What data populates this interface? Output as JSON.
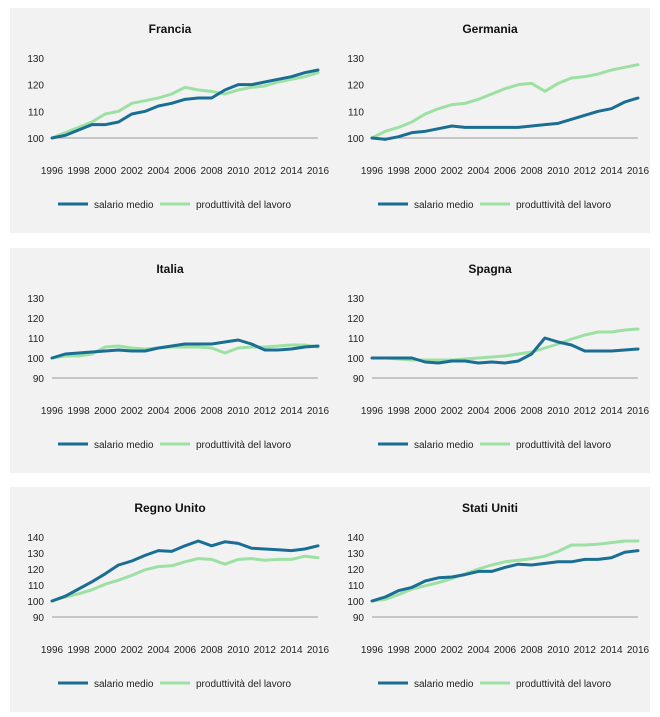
{
  "legend": {
    "salario": "salario medio",
    "produttivita": "produttività del lavoro"
  },
  "colors": {
    "salario": "#1b6e93",
    "produttivita": "#9de0a3",
    "axis": "#9a9a9a",
    "panel_bg": "#f2f2f2"
  },
  "chart_data": [
    {
      "type": "line",
      "title": "Francia",
      "x": [
        1996,
        1997,
        1998,
        1999,
        2000,
        2001,
        2002,
        2003,
        2004,
        2005,
        2006,
        2007,
        2008,
        2009,
        2010,
        2011,
        2012,
        2013,
        2014,
        2015,
        2016
      ],
      "xticks": [
        "1996",
        "1998",
        "2000",
        "2002",
        "2004",
        "2006",
        "2008",
        "2010",
        "2012",
        "2014",
        "2016"
      ],
      "yticks": [
        "100",
        "110",
        "120",
        "130"
      ],
      "ylim": [
        100,
        130
      ],
      "series": [
        {
          "name": "salario medio",
          "values": [
            100,
            101,
            103,
            105,
            105,
            106,
            109,
            110,
            112,
            113,
            114.5,
            115,
            115,
            118,
            120,
            120,
            121,
            122,
            123,
            124.5,
            125.5
          ]
        },
        {
          "name": "produttività del lavoro",
          "values": [
            100,
            102,
            104,
            106,
            109,
            110,
            113,
            114,
            115,
            116.5,
            119,
            118,
            117.5,
            116.5,
            118,
            119,
            119.5,
            121,
            122,
            123,
            124.5
          ]
        }
      ]
    },
    {
      "type": "line",
      "title": "Germania",
      "x": [
        1996,
        1997,
        1998,
        1999,
        2000,
        2001,
        2002,
        2003,
        2004,
        2005,
        2006,
        2007,
        2008,
        2009,
        2010,
        2011,
        2012,
        2013,
        2014,
        2015,
        2016
      ],
      "xticks": [
        "1996",
        "1998",
        "2000",
        "2002",
        "2004",
        "2006",
        "2008",
        "2010",
        "2012",
        "2014",
        "2016"
      ],
      "yticks": [
        "100",
        "110",
        "120",
        "130"
      ],
      "ylim": [
        100,
        130
      ],
      "series": [
        {
          "name": "salario medio",
          "values": [
            100,
            99.5,
            100.5,
            102,
            102.5,
            103.5,
            104.5,
            104,
            104,
            104,
            104,
            104,
            104.5,
            105,
            105.5,
            107,
            108.5,
            110,
            111,
            113.5,
            115
          ]
        },
        {
          "name": "produttività del lavoro",
          "values": [
            100,
            102.5,
            104,
            106,
            109,
            111,
            112.5,
            113,
            114.5,
            116.5,
            118.5,
            120,
            120.5,
            117.5,
            120.5,
            122.5,
            123,
            124,
            125.5,
            126.5,
            127.5
          ]
        }
      ]
    },
    {
      "type": "line",
      "title": "Italia",
      "x": [
        1996,
        1997,
        1998,
        1999,
        2000,
        2001,
        2002,
        2003,
        2004,
        2005,
        2006,
        2007,
        2008,
        2009,
        2010,
        2011,
        2012,
        2013,
        2014,
        2015,
        2016
      ],
      "xticks": [
        "1996",
        "1998",
        "2000",
        "2002",
        "2004",
        "2006",
        "2008",
        "2010",
        "2012",
        "2014",
        "2016"
      ],
      "yticks": [
        "90",
        "100",
        "110",
        "120",
        "130"
      ],
      "ylim": [
        90,
        130
      ],
      "series": [
        {
          "name": "salario medio",
          "values": [
            100,
            102,
            102.5,
            103,
            103.5,
            104,
            103.5,
            103.5,
            105,
            106,
            107,
            107,
            107,
            108,
            109,
            107,
            104,
            104,
            104.5,
            105.5,
            106
          ]
        },
        {
          "name": "produttività del lavoro",
          "values": [
            100,
            101,
            101,
            102,
            105.5,
            106,
            105,
            104.5,
            105,
            105.5,
            105.5,
            105.5,
            105,
            102.5,
            105,
            105.5,
            105.5,
            106,
            106.5,
            106.5,
            105.5
          ]
        }
      ]
    },
    {
      "type": "line",
      "title": "Spagna",
      "x": [
        1996,
        1997,
        1998,
        1999,
        2000,
        2001,
        2002,
        2003,
        2004,
        2005,
        2006,
        2007,
        2008,
        2009,
        2010,
        2011,
        2012,
        2013,
        2014,
        2015,
        2016
      ],
      "xticks": [
        "1996",
        "1998",
        "2000",
        "2002",
        "2004",
        "2006",
        "2008",
        "2010",
        "2012",
        "2014",
        "2016"
      ],
      "yticks": [
        "90",
        "100",
        "110",
        "120",
        "130"
      ],
      "ylim": [
        90,
        130
      ],
      "series": [
        {
          "name": "salario medio",
          "values": [
            100,
            100,
            100,
            100,
            98,
            97.5,
            98.5,
            98.5,
            97.5,
            98,
            97.5,
            98.5,
            102,
            110,
            108,
            106.5,
            103.5,
            103.5,
            103.5,
            104,
            104.5
          ]
        },
        {
          "name": "produttività del lavoro",
          "values": [
            100,
            100,
            99.5,
            99,
            99,
            99,
            99,
            99.5,
            100,
            100.5,
            101,
            102,
            103,
            105,
            107,
            109.5,
            111.5,
            113,
            113,
            114,
            114.5
          ]
        }
      ]
    },
    {
      "type": "line",
      "title": "Regno Unito",
      "x": [
        1996,
        1997,
        1998,
        1999,
        2000,
        2001,
        2002,
        2003,
        2004,
        2005,
        2006,
        2007,
        2008,
        2009,
        2010,
        2011,
        2012,
        2013,
        2014,
        2015,
        2016
      ],
      "xticks": [
        "1996",
        "1998",
        "2000",
        "2002",
        "2004",
        "2006",
        "2008",
        "2010",
        "2012",
        "2014",
        "2016"
      ],
      "yticks": [
        "90",
        "100",
        "110",
        "120",
        "130",
        "140"
      ],
      "ylim": [
        90,
        140
      ],
      "series": [
        {
          "name": "salario medio",
          "values": [
            100,
            103,
            107.5,
            112,
            117,
            122.5,
            125,
            128.5,
            131.5,
            131,
            134.5,
            137.5,
            134.5,
            137,
            136,
            133,
            132.5,
            132,
            131.5,
            132.5,
            134.5
          ]
        },
        {
          "name": "produttività del lavoro",
          "values": [
            100,
            102.5,
            104.5,
            107,
            110.5,
            113,
            116,
            119.5,
            121.5,
            122,
            124.5,
            126.5,
            126,
            123,
            126,
            126.5,
            125.5,
            126,
            126,
            128,
            127
          ]
        }
      ]
    },
    {
      "type": "line",
      "title": "Stati Uniti",
      "x": [
        1996,
        1997,
        1998,
        1999,
        2000,
        2001,
        2002,
        2003,
        2004,
        2005,
        2006,
        2007,
        2008,
        2009,
        2010,
        2011,
        2012,
        2013,
        2014,
        2015,
        2016
      ],
      "xticks": [
        "1996",
        "1998",
        "2000",
        "2002",
        "2004",
        "2006",
        "2008",
        "2010",
        "2012",
        "2014",
        "2016"
      ],
      "yticks": [
        "90",
        "100",
        "110",
        "120",
        "130",
        "140"
      ],
      "ylim": [
        90,
        140
      ],
      "series": [
        {
          "name": "salario medio",
          "values": [
            100,
            102.5,
            106.5,
            108.5,
            112.5,
            114.5,
            115,
            116.5,
            118.5,
            118.5,
            121,
            123,
            122.5,
            123.5,
            124.5,
            124.5,
            126,
            126,
            127,
            130.5,
            131.5
          ]
        },
        {
          "name": "produttività del lavoro",
          "values": [
            100,
            101,
            104,
            107.5,
            109.5,
            111.5,
            114,
            117,
            120,
            122.5,
            124.5,
            125.5,
            126.5,
            128,
            131,
            135,
            135,
            135.5,
            136.5,
            137.5,
            137.5
          ]
        }
      ]
    }
  ]
}
